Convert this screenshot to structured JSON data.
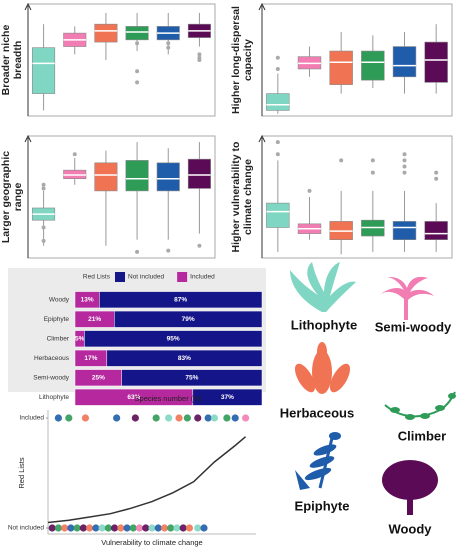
{
  "chart_data": [
    {
      "type": "box",
      "ylabel": "Broader niche breadth",
      "ylim": [
        0,
        100
      ],
      "boxes": [
        {
          "color": "#7fd6c2",
          "min": 5,
          "q1": 20,
          "median": 47,
          "q3": 61,
          "max": 82
        },
        {
          "color": "#f27db3",
          "min": 55,
          "q1": 62,
          "median": 68,
          "q3": 74,
          "max": 80
        },
        {
          "color": "#f07454",
          "min": 50,
          "q1": 66,
          "median": 76,
          "q3": 82,
          "max": 92
        },
        {
          "color": "#2e9b57",
          "min": 58,
          "q1": 68,
          "median": 75,
          "q3": 80,
          "max": 92,
          "outliers": [
            40,
            30,
            65
          ]
        },
        {
          "color": "#1f5dab",
          "min": 55,
          "q1": 68,
          "median": 74,
          "q3": 80,
          "max": 92,
          "outliers": [
            65,
            61
          ]
        },
        {
          "color": "#5b0b55",
          "min": 62,
          "q1": 70,
          "median": 76,
          "q3": 82,
          "max": 92,
          "outliers": [
            55,
            52,
            50
          ]
        }
      ]
    },
    {
      "type": "box",
      "ylabel": "Higher long-dispersal capacity",
      "ylim": [
        0,
        100
      ],
      "boxes": [
        {
          "color": "#7fd6c2",
          "min": 2,
          "q1": 5,
          "median": 10,
          "q3": 20,
          "max": 38,
          "outliers": [
            52,
            42
          ]
        },
        {
          "color": "#f27db3",
          "min": 35,
          "q1": 42,
          "median": 47,
          "q3": 53,
          "max": 62
        },
        {
          "color": "#f07454",
          "min": 20,
          "q1": 28,
          "median": 48,
          "q3": 58,
          "max": 75
        },
        {
          "color": "#2e9b57",
          "min": 25,
          "q1": 32,
          "median": 48,
          "q3": 58,
          "max": 72
        },
        {
          "color": "#1f5dab",
          "min": 20,
          "q1": 35,
          "median": 45,
          "q3": 62,
          "max": 75
        },
        {
          "color": "#5b0b55",
          "min": 20,
          "q1": 30,
          "median": 50,
          "q3": 66,
          "max": 82
        }
      ]
    },
    {
      "type": "box",
      "ylabel": "Larger geographic range",
      "ylim": [
        0,
        100
      ],
      "boxes": [
        {
          "color": "#7fd6c2",
          "min": 10,
          "q1": 31,
          "median": 36,
          "q3": 41,
          "max": 55,
          "outliers": [
            60,
            57,
            25,
            14
          ]
        },
        {
          "color": "#f27db3",
          "min": 60,
          "q1": 65,
          "median": 68,
          "q3": 72,
          "max": 82,
          "outliers": [
            85
          ]
        },
        {
          "color": "#f07454",
          "min": 10,
          "q1": 55,
          "median": 68,
          "q3": 78,
          "max": 88
        },
        {
          "color": "#2e9b57",
          "min": 15,
          "q1": 55,
          "median": 65,
          "q3": 80,
          "max": 95,
          "outliers": [
            5
          ]
        },
        {
          "color": "#1f5dab",
          "min": 15,
          "q1": 55,
          "median": 65,
          "q3": 78,
          "max": 90,
          "outliers": [
            6
          ]
        },
        {
          "color": "#5b0b55",
          "min": 20,
          "q1": 57,
          "median": 68,
          "q3": 81,
          "max": 95,
          "outliers": [
            10
          ]
        }
      ]
    },
    {
      "type": "box",
      "ylabel": "Higher vulnerability to climate change",
      "ylim": [
        0,
        100
      ],
      "boxes": [
        {
          "color": "#7fd6c2",
          "min": 5,
          "q1": 25,
          "median": 38,
          "q3": 45,
          "max": 80,
          "outliers": [
            95,
            85
          ]
        },
        {
          "color": "#f27db3",
          "min": 15,
          "q1": 20,
          "median": 24,
          "q3": 28,
          "max": 50,
          "outliers": [
            55
          ]
        },
        {
          "color": "#f07454",
          "min": 3,
          "q1": 15,
          "median": 22,
          "q3": 30,
          "max": 55,
          "outliers": [
            80
          ]
        },
        {
          "color": "#2e9b57",
          "min": 5,
          "q1": 18,
          "median": 25,
          "q3": 31,
          "max": 55,
          "outliers": [
            80,
            70
          ]
        },
        {
          "color": "#1f5dab",
          "min": 5,
          "q1": 15,
          "median": 25,
          "q3": 30,
          "max": 55,
          "outliers": [
            85,
            80,
            75,
            70
          ]
        },
        {
          "color": "#5b0b55",
          "min": 5,
          "q1": 15,
          "median": 20,
          "q3": 30,
          "max": 45,
          "outliers": [
            70,
            65
          ]
        }
      ]
    },
    {
      "type": "stacked-barh",
      "legend_title": "Red Lists",
      "xlabel": "Species number (%)",
      "xlim": [
        0,
        100
      ],
      "categories": [
        "Woody",
        "Epiphyte",
        "Climber",
        "Herbaceous",
        "Semi-woody",
        "Lithophyte"
      ],
      "series": [
        {
          "name": "Included",
          "color": "#b5289e",
          "values": [
            13,
            21,
            5,
            17,
            25,
            63
          ],
          "value_labels": [
            "13%",
            "21%",
            "5%",
            "17%",
            "25%",
            "63%"
          ]
        },
        {
          "name": "Not included",
          "color": "#15158a",
          "values": [
            87,
            79,
            95,
            83,
            75,
            37
          ],
          "value_labels": [
            "87%",
            "79%",
            "95%",
            "83%",
            "75%",
            "37%"
          ]
        }
      ]
    },
    {
      "type": "logistic",
      "ylabel": "Red Lists",
      "xlabel": "Vulnerability to climate change",
      "xlim": [
        0,
        1
      ],
      "ylim": [
        0,
        1
      ],
      "yticks": [
        {
          "value": 0,
          "label": "Not included"
        },
        {
          "value": 1,
          "label": "Included"
        }
      ],
      "curve": {
        "color": "#333333",
        "x": [
          0,
          0.1,
          0.2,
          0.3,
          0.4,
          0.5,
          0.6,
          0.7,
          0.8,
          0.9,
          0.95
        ],
        "values": [
          0.05,
          0.07,
          0.1,
          0.13,
          0.18,
          0.24,
          0.32,
          0.42,
          0.6,
          0.75,
          0.83
        ]
      },
      "points": {
        "x": [
          0.05,
          0.1,
          0.18,
          0.33,
          0.42,
          0.52,
          0.58,
          0.63,
          0.67,
          0.72,
          0.77,
          0.8,
          0.86,
          0.9,
          0.95,
          0.02,
          0.05,
          0.08,
          0.11,
          0.14,
          0.17,
          0.2,
          0.23,
          0.26,
          0.29,
          0.32,
          0.35,
          0.38,
          0.41,
          0.44,
          0.47,
          0.5,
          0.53,
          0.56,
          0.59,
          0.62,
          0.65,
          0.68,
          0.72,
          0.75
        ],
        "values": [
          1,
          1,
          1,
          1,
          1,
          1,
          1,
          1,
          1,
          1,
          1,
          1,
          1,
          1,
          1,
          0,
          0,
          0,
          0,
          0,
          0,
          0,
          0,
          0,
          0,
          0,
          0,
          0,
          0,
          0,
          0,
          0,
          0,
          0,
          0,
          0,
          0,
          0,
          0,
          0
        ],
        "colors": [
          "#1f5dab",
          "#2e9b57",
          "#f07454",
          "#1f5dab",
          "#5b0b55",
          "#2e9b57",
          "#7fd6c2",
          "#f07454",
          "#2e9b57",
          "#5b0b55",
          "#1f5dab",
          "#7fd6c2",
          "#2e9b57",
          "#1f5dab",
          "#f27db3",
          "#5b0b55",
          "#2e9b57",
          "#f07454",
          "#1f5dab",
          "#2e9b57",
          "#5b0b55",
          "#f07454",
          "#1f5dab",
          "#7fd6c2",
          "#2e9b57",
          "#5b0b55",
          "#f07454",
          "#1f5dab",
          "#2e9b57",
          "#f27db3",
          "#5b0b55",
          "#7fd6c2",
          "#1f5dab",
          "#f07454",
          "#2e9b57",
          "#7fd6c2",
          "#5b0b55",
          "#f07454",
          "#7fd6c2",
          "#1f5dab"
        ]
      }
    }
  ],
  "plant_labels": [
    "Lithophyte",
    "Semi-woody",
    "Herbaceous",
    "Climber",
    "Epiphyte",
    "Woody"
  ]
}
